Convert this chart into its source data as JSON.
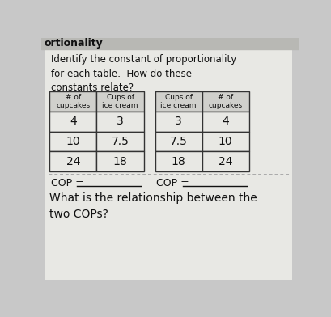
{
  "title_text": "Identify the constant of proportionality\nfor each table.  How do these\nconstants relate?",
  "header_text": "ortionality",
  "table1_headers": [
    "# of\ncupcakes",
    "Cups of\nice cream"
  ],
  "table1_data": [
    [
      "4",
      "3"
    ],
    [
      "10",
      "7.5"
    ],
    [
      "24",
      "18"
    ]
  ],
  "table2_headers": [
    "Cups of\nice cream",
    "# of\ncupcakes"
  ],
  "table2_data": [
    [
      "3",
      "4"
    ],
    [
      "7.5",
      "10"
    ],
    [
      "18",
      "24"
    ]
  ],
  "cop_label1": "COP = ",
  "cop_label2": "COP = ",
  "bottom_text": "What is the relationship between the\ntwo COPs?",
  "bg_color": "#c8c8c8",
  "page_color": "#e8e8e4",
  "header_bg": "#d0d0cc",
  "cell_bg": "#e8e8e4",
  "text_color": "#111111",
  "border_color": "#333333",
  "white": "#f4f4f0",
  "header_bar_color": "#b8b8b4",
  "header_bar_text": "#111111"
}
